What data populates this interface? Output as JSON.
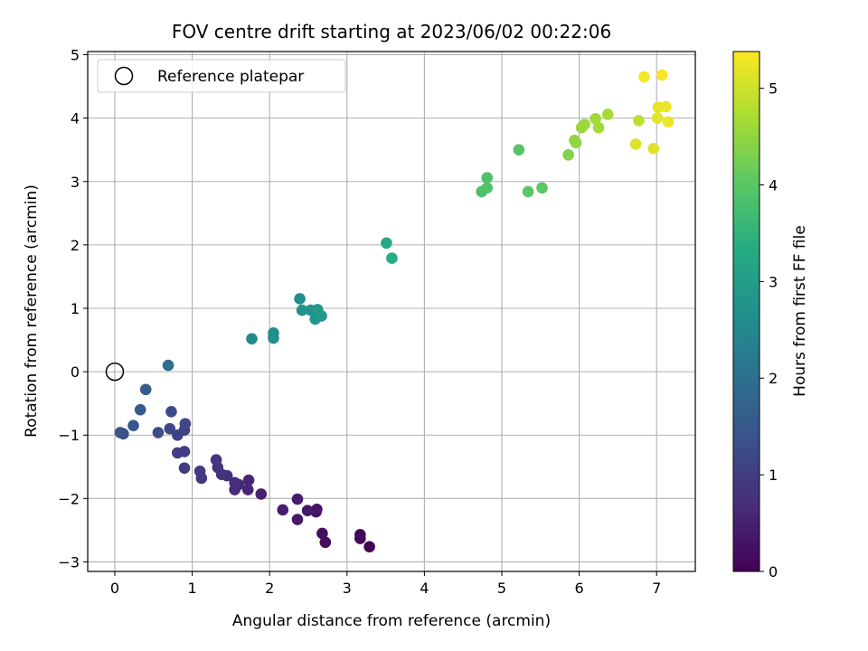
{
  "chart_data": {
    "type": "scatter",
    "title": "FOV centre drift starting at 2023/06/02 00:22:06",
    "xlabel": "Angular distance from reference (arcmin)",
    "ylabel": "Rotation from reference (arcmin)",
    "xlim": [
      -0.35,
      7.5
    ],
    "ylim": [
      -3.15,
      5.05
    ],
    "xticks": [
      0,
      1,
      2,
      3,
      4,
      5,
      6,
      7
    ],
    "yticks": [
      -3,
      -2,
      -1,
      0,
      1,
      2,
      3,
      4,
      5
    ],
    "grid": true,
    "legend": {
      "placement": "upper-left",
      "entries": [
        "Reference platepar"
      ]
    },
    "reference_point": {
      "x": 0,
      "y": 0,
      "name": "Reference platepar",
      "marker": "open-circle"
    },
    "colorbar": {
      "label": "Hours from first FF file",
      "colormap": "viridis",
      "range": [
        0,
        5.38
      ],
      "ticks": [
        0,
        1,
        2,
        3,
        4,
        5
      ]
    },
    "points": [
      {
        "x": 3.29,
        "y": -2.76,
        "c": 0.05
      },
      {
        "x": 3.17,
        "y": -2.57,
        "c": 0.1
      },
      {
        "x": 3.17,
        "y": -2.63,
        "c": 0.12
      },
      {
        "x": 2.72,
        "y": -2.69,
        "c": 0.18
      },
      {
        "x": 2.68,
        "y": -2.55,
        "c": 0.22
      },
      {
        "x": 2.61,
        "y": -2.17,
        "c": 0.27
      },
      {
        "x": 2.6,
        "y": -2.21,
        "c": 0.3
      },
      {
        "x": 2.49,
        "y": -2.19,
        "c": 0.34
      },
      {
        "x": 2.36,
        "y": -2.33,
        "c": 0.38
      },
      {
        "x": 2.36,
        "y": -2.01,
        "c": 0.42
      },
      {
        "x": 2.17,
        "y": -2.18,
        "c": 0.46
      },
      {
        "x": 1.89,
        "y": -1.93,
        "c": 0.52
      },
      {
        "x": 1.73,
        "y": -1.71,
        "c": 0.57
      },
      {
        "x": 1.72,
        "y": -1.86,
        "c": 0.6
      },
      {
        "x": 1.6,
        "y": -1.78,
        "c": 0.64
      },
      {
        "x": 1.55,
        "y": -1.86,
        "c": 0.68
      },
      {
        "x": 1.55,
        "y": -1.75,
        "c": 0.7
      },
      {
        "x": 1.45,
        "y": -1.64,
        "c": 0.74
      },
      {
        "x": 1.38,
        "y": -1.62,
        "c": 0.77
      },
      {
        "x": 1.33,
        "y": -1.51,
        "c": 0.8
      },
      {
        "x": 1.31,
        "y": -1.39,
        "c": 0.83
      },
      {
        "x": 1.12,
        "y": -1.68,
        "c": 0.87
      },
      {
        "x": 1.1,
        "y": -1.57,
        "c": 0.9
      },
      {
        "x": 0.9,
        "y": -1.52,
        "c": 0.95
      },
      {
        "x": 0.9,
        "y": -1.26,
        "c": 0.98
      },
      {
        "x": 0.81,
        "y": -1.28,
        "c": 1.02
      },
      {
        "x": 0.81,
        "y": -1.0,
        "c": 1.06
      },
      {
        "x": 0.9,
        "y": -0.92,
        "c": 1.1
      },
      {
        "x": 0.91,
        "y": -0.82,
        "c": 1.13
      },
      {
        "x": 0.71,
        "y": -0.9,
        "c": 1.17
      },
      {
        "x": 0.73,
        "y": -0.63,
        "c": 1.22
      },
      {
        "x": 0.56,
        "y": -0.96,
        "c": 1.27
      },
      {
        "x": 0.11,
        "y": -0.98,
        "c": 1.32
      },
      {
        "x": 0.07,
        "y": -0.96,
        "c": 1.36
      },
      {
        "x": 0.24,
        "y": -0.85,
        "c": 1.42
      },
      {
        "x": 0.33,
        "y": -0.6,
        "c": 1.52
      },
      {
        "x": 0.4,
        "y": -0.28,
        "c": 1.62
      },
      {
        "x": 0.69,
        "y": 0.1,
        "c": 1.95
      },
      {
        "x": 1.77,
        "y": 0.52,
        "c": 2.58
      },
      {
        "x": 2.05,
        "y": 0.53,
        "c": 2.62
      },
      {
        "x": 2.05,
        "y": 0.61,
        "c": 2.65
      },
      {
        "x": 2.39,
        "y": 1.15,
        "c": 2.7
      },
      {
        "x": 2.42,
        "y": 0.97,
        "c": 2.74
      },
      {
        "x": 2.53,
        "y": 0.97,
        "c": 2.78
      },
      {
        "x": 2.59,
        "y": 0.83,
        "c": 2.82
      },
      {
        "x": 2.62,
        "y": 0.98,
        "c": 2.86
      },
      {
        "x": 2.67,
        "y": 0.88,
        "c": 2.9
      },
      {
        "x": 3.51,
        "y": 2.03,
        "c": 3.25
      },
      {
        "x": 3.58,
        "y": 1.79,
        "c": 3.32
      },
      {
        "x": 4.74,
        "y": 2.84,
        "c": 3.85
      },
      {
        "x": 4.81,
        "y": 3.06,
        "c": 3.87
      },
      {
        "x": 4.81,
        "y": 2.9,
        "c": 3.89
      },
      {
        "x": 5.22,
        "y": 3.5,
        "c": 3.95
      },
      {
        "x": 5.34,
        "y": 2.84,
        "c": 4.0
      },
      {
        "x": 5.52,
        "y": 2.9,
        "c": 4.02
      },
      {
        "x": 5.86,
        "y": 3.42,
        "c": 4.38
      },
      {
        "x": 5.94,
        "y": 3.65,
        "c": 4.45
      },
      {
        "x": 5.96,
        "y": 3.61,
        "c": 4.48
      },
      {
        "x": 6.03,
        "y": 3.85,
        "c": 4.55
      },
      {
        "x": 6.07,
        "y": 3.9,
        "c": 4.58
      },
      {
        "x": 6.21,
        "y": 3.99,
        "c": 4.62
      },
      {
        "x": 6.25,
        "y": 3.85,
        "c": 4.64
      },
      {
        "x": 6.37,
        "y": 4.06,
        "c": 4.68
      },
      {
        "x": 6.77,
        "y": 3.96,
        "c": 4.88
      },
      {
        "x": 6.73,
        "y": 3.59,
        "c": 5.12
      },
      {
        "x": 6.96,
        "y": 3.52,
        "c": 5.15
      },
      {
        "x": 7.01,
        "y": 4.0,
        "c": 5.18
      },
      {
        "x": 7.02,
        "y": 4.17,
        "c": 5.2
      },
      {
        "x": 7.12,
        "y": 4.18,
        "c": 5.23
      },
      {
        "x": 7.15,
        "y": 3.94,
        "c": 5.27
      },
      {
        "x": 6.84,
        "y": 4.65,
        "c": 5.3
      },
      {
        "x": 7.07,
        "y": 4.68,
        "c": 5.33
      }
    ]
  }
}
